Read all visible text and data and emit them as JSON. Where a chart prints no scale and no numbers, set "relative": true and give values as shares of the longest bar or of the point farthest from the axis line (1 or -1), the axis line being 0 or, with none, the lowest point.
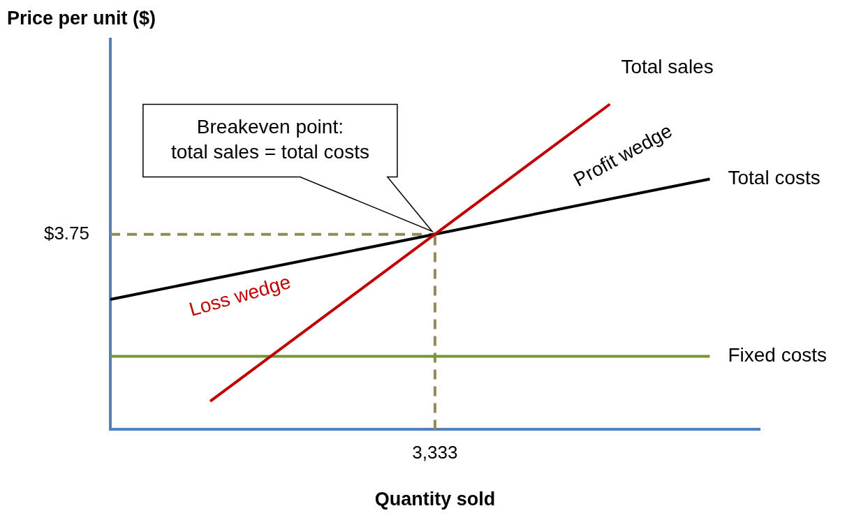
{
  "chart_data": {
    "type": "line",
    "relative": true,
    "xlabel": "Quantity sold",
    "ylabel": "Price per unit ($)",
    "categories": [
      null,
      null,
      null,
      null,
      null,
      null,
      null,
      null,
      null,
      null,
      null,
      null,
      null,
      null,
      null,
      null,
      null,
      null,
      null,
      null,
      null,
      null,
      null,
      null,
      null,
      null,
      null
    ],
    "series": [
      {
        "name": "Total sales",
        "color": "#c00000",
        "values": [
          null,
          null,
          null,
          null,
          0.087,
          null,
          null,
          null,
          null,
          null,
          null,
          null,
          null,
          null,
          null,
          null,
          null,
          null,
          null,
          null,
          1,
          null,
          null,
          null,
          null,
          null,
          null
        ]
      },
      {
        "name": "Total costs",
        "color": "#000000",
        "values": [
          0.4,
          null,
          null,
          null,
          null,
          null,
          null,
          null,
          null,
          null,
          null,
          null,
          null,
          null,
          null,
          null,
          null,
          null,
          null,
          null,
          null,
          null,
          null,
          null,
          0.77,
          null,
          null
        ]
      },
      {
        "name": "Fixed costs",
        "color": "#77933c",
        "values": [
          0.225,
          null,
          null,
          null,
          null,
          null,
          null,
          null,
          null,
          null,
          null,
          null,
          null,
          null,
          null,
          null,
          null,
          null,
          null,
          null,
          null,
          null,
          null,
          null,
          0.225,
          null,
          null
        ]
      }
    ],
    "ref_lines": [
      {
        "axis": "y",
        "value": 0.6,
        "color": "#948a54",
        "line_style": "dashed"
      }
    ],
    "annotations": [
      "Breakeven point:\ntotal sales = total costs",
      "Profit wedge",
      "Loss wedge",
      "$3.75",
      "3,333"
    ],
    "grid": false,
    "legend": false,
    "marker": "none",
    "line_style": "solid"
  }
}
